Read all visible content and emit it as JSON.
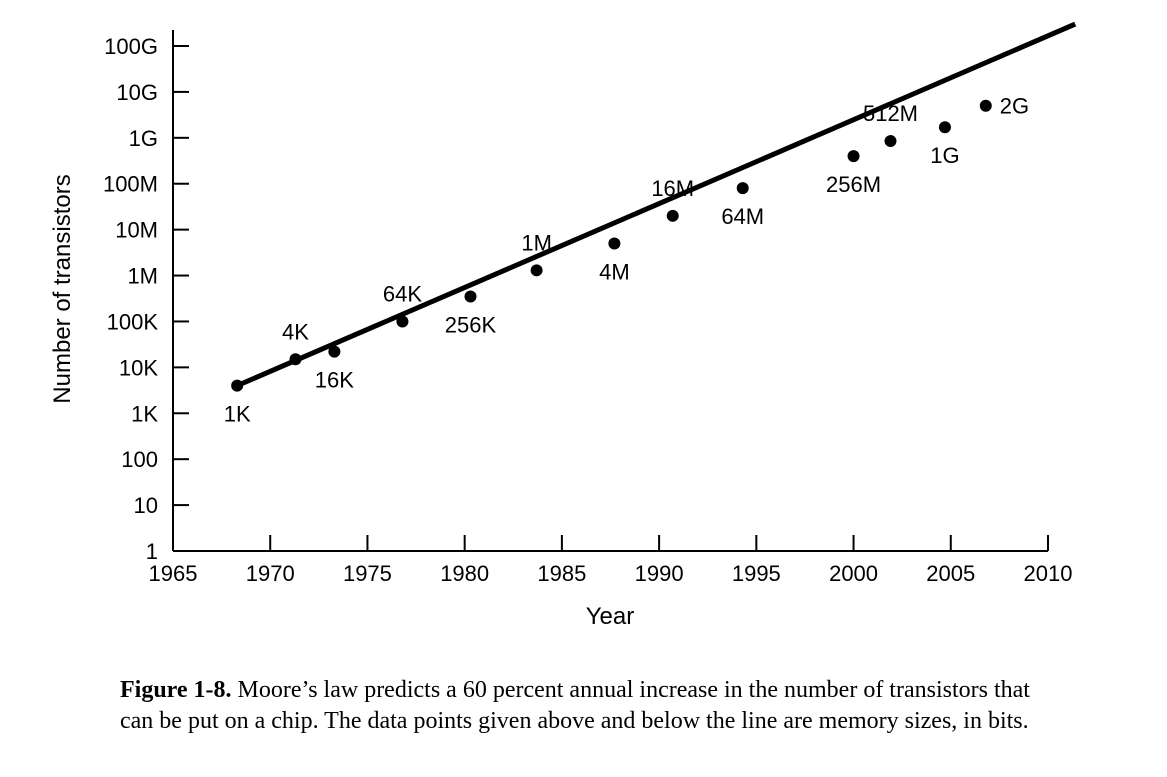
{
  "chart_data": {
    "type": "scatter",
    "title": "",
    "xlabel": "Year",
    "ylabel": "Number of transistors",
    "x_ticks": [
      "1965",
      "1970",
      "1975",
      "1980",
      "1985",
      "1990",
      "1995",
      "2000",
      "2005",
      "2010"
    ],
    "x_range": [
      1965,
      2010
    ],
    "y_scale": "log",
    "y_range": [
      1,
      100000000000
    ],
    "y_ticks": [
      {
        "label": "100G",
        "value": 100000000000
      },
      {
        "label": "10G",
        "value": 10000000000
      },
      {
        "label": "1G",
        "value": 1000000000
      },
      {
        "label": "100M",
        "value": 100000000
      },
      {
        "label": "10M",
        "value": 10000000
      },
      {
        "label": "1M",
        "value": 1000000
      },
      {
        "label": "100K",
        "value": 100000
      },
      {
        "label": "10K",
        "value": 10000
      },
      {
        "label": "1K",
        "value": 1000
      },
      {
        "label": "100",
        "value": 100
      },
      {
        "label": "10",
        "value": 10
      },
      {
        "label": "1",
        "value": 1
      }
    ],
    "grid": false,
    "points": [
      {
        "label": "1K",
        "x": 1968.3,
        "y": 4000,
        "label_pos": "below"
      },
      {
        "label": "4K",
        "x": 1971.3,
        "y": 15000,
        "label_pos": "above"
      },
      {
        "label": "16K",
        "x": 1973.3,
        "y": 22000,
        "label_pos": "below"
      },
      {
        "label": "64K",
        "x": 1976.8,
        "y": 100000,
        "label_pos": "above"
      },
      {
        "label": "256K",
        "x": 1980.3,
        "y": 350000,
        "label_pos": "below"
      },
      {
        "label": "1M",
        "x": 1983.7,
        "y": 1300000,
        "label_pos": "above"
      },
      {
        "label": "4M",
        "x": 1987.7,
        "y": 5000000,
        "label_pos": "below"
      },
      {
        "label": "16M",
        "x": 1990.7,
        "y": 20000000,
        "label_pos": "above"
      },
      {
        "label": "64M",
        "x": 1994.3,
        "y": 80000000,
        "label_pos": "below"
      },
      {
        "label": "256M",
        "x": 2000.0,
        "y": 400000000,
        "label_pos": "below"
      },
      {
        "label": "512M",
        "x": 2001.9,
        "y": 850000000,
        "label_pos": "above"
      },
      {
        "label": "1G",
        "x": 2004.7,
        "y": 1700000000,
        "label_pos": "below"
      },
      {
        "label": "2G",
        "x": 2006.8,
        "y": 5000000000,
        "label_pos": "right"
      }
    ],
    "trend_line": {
      "x": [
        1968.3,
        2011.4
      ],
      "y": [
        4000,
        300000000000
      ]
    }
  },
  "caption": {
    "label": "Figure 1-8.",
    "text": "Moore’s law predicts a 60 percent annual increase in the number of transistors that can be put on a chip.  The data points given above and below the line are memory sizes, in bits."
  }
}
